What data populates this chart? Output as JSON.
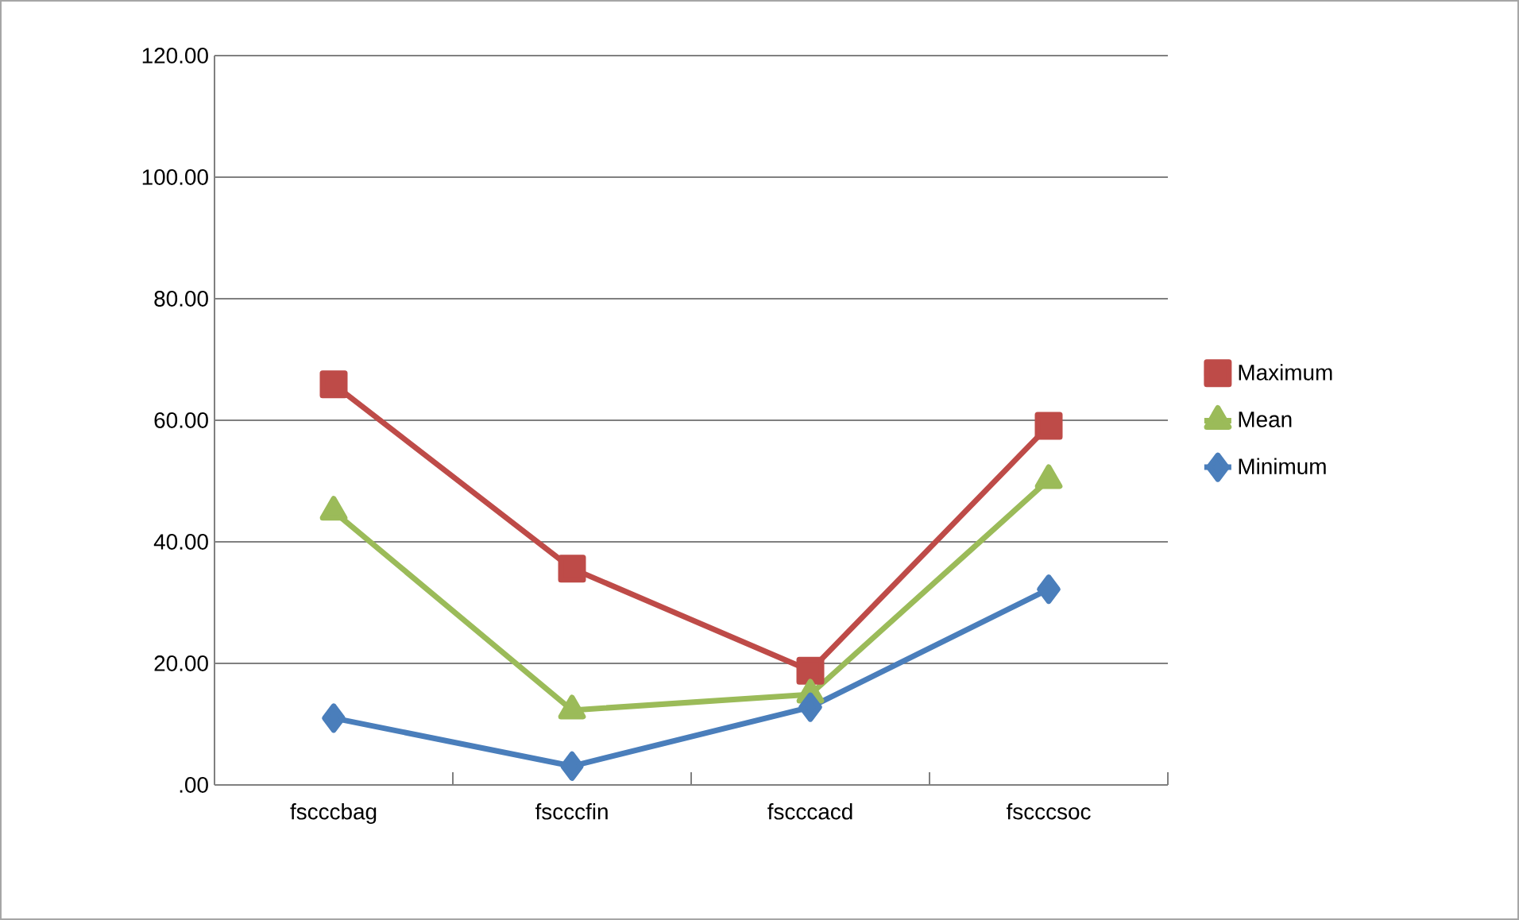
{
  "chart_data": {
    "type": "line",
    "categories": [
      "fscccbag",
      "fscccfin",
      "fscccacd",
      "fscccsoc"
    ],
    "series": [
      {
        "name": "Maximum",
        "color": "#be4b48",
        "marker": "square",
        "values": [
          65.9,
          35.6,
          18.8,
          59.1
        ]
      },
      {
        "name": "Mean",
        "color": "#9bbb59",
        "marker": "triangle",
        "values": [
          45.0,
          12.3,
          14.9,
          50.2
        ]
      },
      {
        "name": "Minimum",
        "color": "#4a7ebb",
        "marker": "diamond",
        "values": [
          11.0,
          3.1,
          12.8,
          32.2
        ]
      }
    ],
    "ylim": [
      0,
      120
    ],
    "yticks": [
      {
        "value": 0,
        "label": ".00"
      },
      {
        "value": 20,
        "label": "20.00"
      },
      {
        "value": 40,
        "label": "40.00"
      },
      {
        "value": 60,
        "label": "60.00"
      },
      {
        "value": 80,
        "label": "80.00"
      },
      {
        "value": 100,
        "label": "100.00"
      },
      {
        "value": 120,
        "label": "120.00"
      }
    ],
    "grid": "y",
    "legend": "right"
  }
}
